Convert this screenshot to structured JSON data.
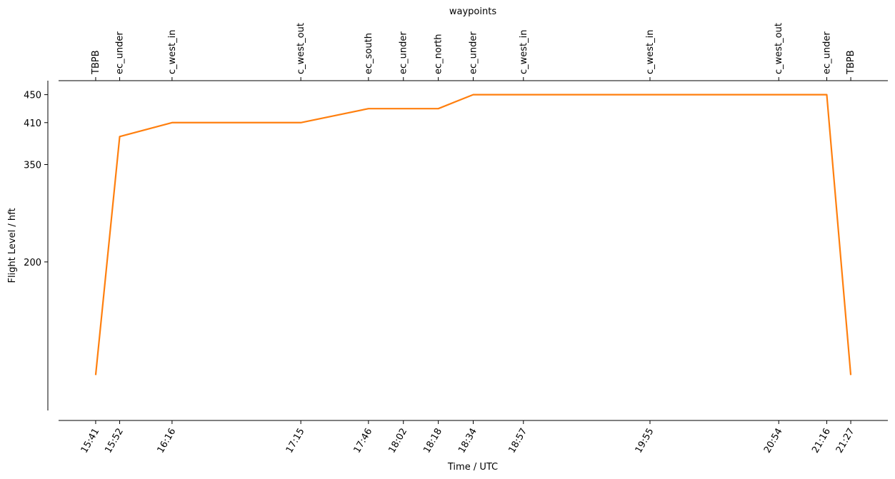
{
  "chart_data": {
    "type": "line",
    "top_axis_label": "waypoints",
    "xlabel": "Time / UTC",
    "ylabel": "Flight Level / hft",
    "x": [
      "15:41",
      "15:52",
      "16:16",
      "17:15",
      "17:46",
      "18:02",
      "18:18",
      "18:34",
      "18:57",
      "19:55",
      "20:54",
      "21:16",
      "21:27"
    ],
    "waypoints": [
      "TBPB",
      "ec_under",
      "c_west_in",
      "c_west_out",
      "ec_south",
      "ec_under",
      "ec_north",
      "ec_under",
      "c_west_in",
      "c_west_in",
      "c_west_out",
      "ec_under",
      "TBPB"
    ],
    "values": [
      0,
      390,
      410,
      410,
      430,
      430,
      430,
      450,
      450,
      450,
      450,
      450,
      0
    ],
    "color": "#ff7f0e",
    "xlim": [
      "15:24",
      "21:44"
    ],
    "xticks": [
      "15:41",
      "15:52",
      "16:16",
      "17:15",
      "17:46",
      "18:02",
      "18:18",
      "18:34",
      "18:57",
      "19:55",
      "20:54",
      "21:16",
      "21:27"
    ],
    "ylim": [
      -69,
      470
    ],
    "yticks": [
      200,
      350,
      410,
      450
    ],
    "yscale": "pressure"
  }
}
